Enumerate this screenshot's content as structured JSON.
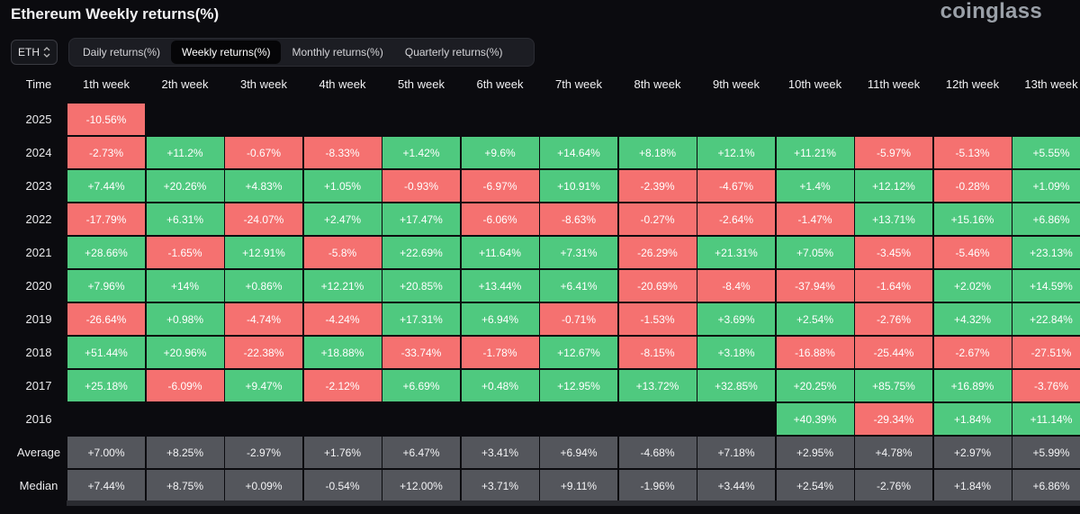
{
  "title": "Ethereum Weekly returns(%)",
  "brand": "coinglass",
  "coin_select": "ETH",
  "tabs": [
    "Daily returns(%)",
    "Weekly returns(%)",
    "Monthly returns(%)",
    "Quarterly returns(%)"
  ],
  "active_tab": 1,
  "columns": [
    "Time",
    "1th week",
    "2th week",
    "3th week",
    "4th week",
    "5th week",
    "6th week",
    "7th week",
    "8th week",
    "9th week",
    "10th week",
    "11th week",
    "12th week",
    "13th week"
  ],
  "rows": [
    {
      "label": "2025",
      "type": "year",
      "values": [
        "-10.56%",
        "",
        "",
        "",
        "",
        "",
        "",
        "",
        "",
        "",
        "",
        "",
        ""
      ]
    },
    {
      "label": "2024",
      "type": "year",
      "values": [
        "-2.73%",
        "+11.2%",
        "-0.67%",
        "-8.33%",
        "+1.42%",
        "+9.6%",
        "+14.64%",
        "+8.18%",
        "+12.1%",
        "+11.21%",
        "-5.97%",
        "-5.13%",
        "+5.55%"
      ]
    },
    {
      "label": "2023",
      "type": "year",
      "values": [
        "+7.44%",
        "+20.26%",
        "+4.83%",
        "+1.05%",
        "-0.93%",
        "-6.97%",
        "+10.91%",
        "-2.39%",
        "-4.67%",
        "+1.4%",
        "+12.12%",
        "-0.28%",
        "+1.09%"
      ]
    },
    {
      "label": "2022",
      "type": "year",
      "values": [
        "-17.79%",
        "+6.31%",
        "-24.07%",
        "+2.47%",
        "+17.47%",
        "-6.06%",
        "-8.63%",
        "-0.27%",
        "-2.64%",
        "-1.47%",
        "+13.71%",
        "+15.16%",
        "+6.86%"
      ]
    },
    {
      "label": "2021",
      "type": "year",
      "values": [
        "+28.66%",
        "-1.65%",
        "+12.91%",
        "-5.8%",
        "+22.69%",
        "+11.64%",
        "+7.31%",
        "-26.29%",
        "+21.31%",
        "+7.05%",
        "-3.45%",
        "-5.46%",
        "+23.13%"
      ]
    },
    {
      "label": "2020",
      "type": "year",
      "values": [
        "+7.96%",
        "+14%",
        "+0.86%",
        "+12.21%",
        "+20.85%",
        "+13.44%",
        "+6.41%",
        "-20.69%",
        "-8.4%",
        "-37.94%",
        "-1.64%",
        "+2.02%",
        "+14.59%"
      ]
    },
    {
      "label": "2019",
      "type": "year",
      "values": [
        "-26.64%",
        "+0.98%",
        "-4.74%",
        "-4.24%",
        "+17.31%",
        "+6.94%",
        "-0.71%",
        "-1.53%",
        "+3.69%",
        "+2.54%",
        "-2.76%",
        "+4.32%",
        "+22.84%"
      ]
    },
    {
      "label": "2018",
      "type": "year",
      "values": [
        "+51.44%",
        "+20.96%",
        "-22.38%",
        "+18.88%",
        "-33.74%",
        "-1.78%",
        "+12.67%",
        "-8.15%",
        "+3.18%",
        "-16.88%",
        "-25.44%",
        "-2.67%",
        "-27.51%"
      ]
    },
    {
      "label": "2017",
      "type": "year",
      "values": [
        "+25.18%",
        "-6.09%",
        "+9.47%",
        "-2.12%",
        "+6.69%",
        "+0.48%",
        "+12.95%",
        "+13.72%",
        "+32.85%",
        "+20.25%",
        "+85.75%",
        "+16.89%",
        "-3.76%"
      ]
    },
    {
      "label": "2016",
      "type": "year",
      "values": [
        "",
        "",
        "",
        "",
        "",
        "",
        "",
        "",
        "",
        "+40.39%",
        "-29.34%",
        "+1.84%",
        "+11.14%"
      ]
    },
    {
      "label": "Average",
      "type": "stat",
      "values": [
        "+7.00%",
        "+8.25%",
        "-2.97%",
        "+1.76%",
        "+6.47%",
        "+3.41%",
        "+6.94%",
        "-4.68%",
        "+7.18%",
        "+2.95%",
        "+4.78%",
        "+2.97%",
        "+5.99%"
      ]
    },
    {
      "label": "Median",
      "type": "stat",
      "values": [
        "+7.44%",
        "+8.75%",
        "+0.09%",
        "-0.54%",
        "+12.00%",
        "+3.71%",
        "+9.11%",
        "-1.96%",
        "+3.44%",
        "+2.54%",
        "-2.76%",
        "+1.84%",
        "+6.86%"
      ]
    }
  ],
  "colors": {
    "positive": "#4fc97f",
    "negative": "#f57170",
    "stat": "#54565c",
    "background": "#0b0b0f"
  },
  "icons": {
    "coin_select": "chevron-updown-icon"
  }
}
